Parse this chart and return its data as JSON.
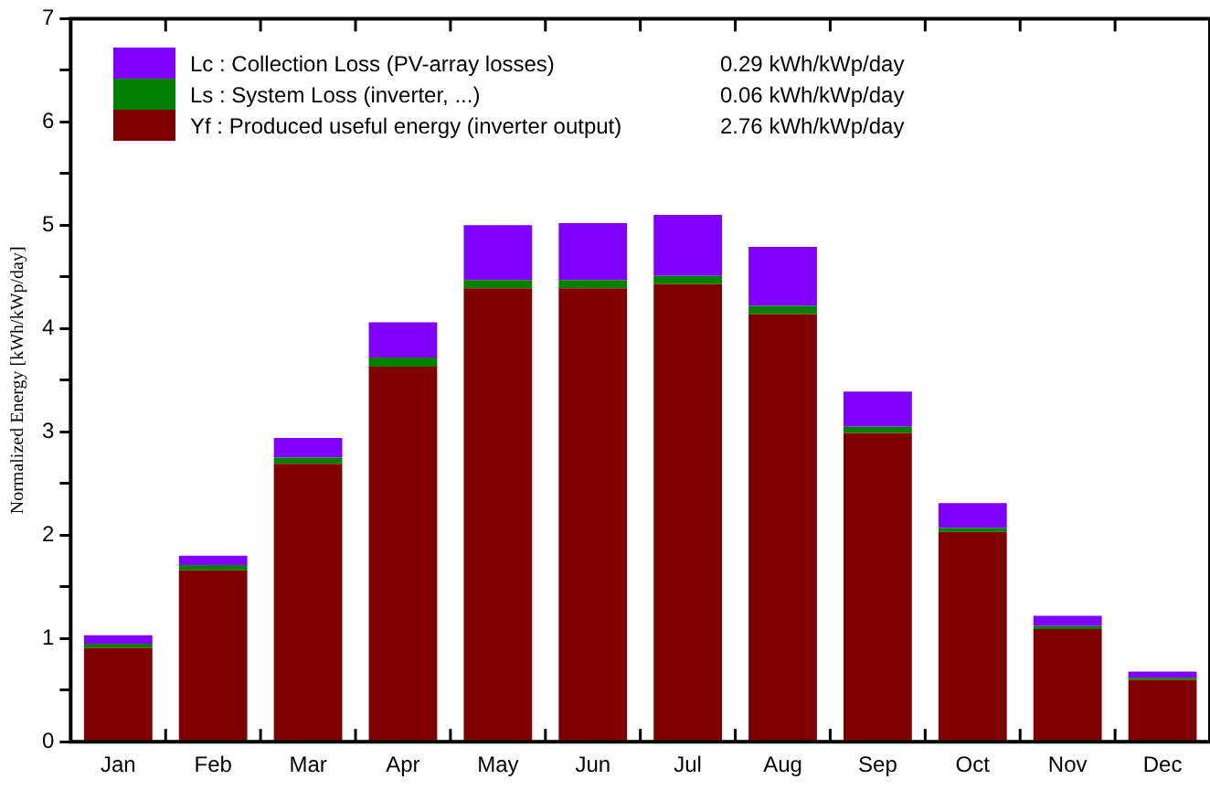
{
  "chart_data": {
    "type": "bar",
    "stacked": true,
    "ylabel": "Normalized Energy [kWh/kWp/day]",
    "categories": [
      "Jan",
      "Feb",
      "Mar",
      "Apr",
      "May",
      "Jun",
      "Jul",
      "Aug",
      "Sep",
      "Oct",
      "Nov",
      "Dec"
    ],
    "series": [
      {
        "name": "Yf : Produced useful energy  (inverter output)",
        "color": "#800000",
        "values": [
          0.91,
          1.66,
          2.69,
          3.63,
          4.39,
          4.39,
          4.43,
          4.14,
          2.99,
          2.03,
          1.09,
          0.6
        ]
      },
      {
        "name": "Ls : System Loss  (inverter, ...)",
        "color": "#008000",
        "values": [
          0.04,
          0.05,
          0.06,
          0.09,
          0.08,
          0.08,
          0.08,
          0.08,
          0.06,
          0.04,
          0.03,
          0.02
        ]
      },
      {
        "name": "Lc : Collection Loss (PV-array losses)",
        "color": "#8000ff",
        "values": [
          0.08,
          0.09,
          0.19,
          0.34,
          0.53,
          0.55,
          0.59,
          0.57,
          0.34,
          0.24,
          0.1,
          0.06
        ]
      }
    ],
    "annotations": [
      "2.76 kWh/kWp/day",
      "0.06 kWh/kWp/day",
      "0.29 kWh/kWp/day"
    ],
    "ylim": [
      0,
      7
    ],
    "yticks": [
      0,
      {
        "value": 0.5,
        "label": null
      },
      1,
      {
        "value": 1.5,
        "label": null
      },
      2,
      {
        "value": 2.5,
        "label": null
      },
      3,
      {
        "value": 3.5,
        "label": null
      },
      4,
      {
        "value": 4.5,
        "label": null
      },
      5,
      {
        "value": 5.5,
        "label": null
      },
      6,
      {
        "value": 6.5,
        "label": null
      },
      7
    ],
    "grid": false,
    "legend": "top left"
  }
}
